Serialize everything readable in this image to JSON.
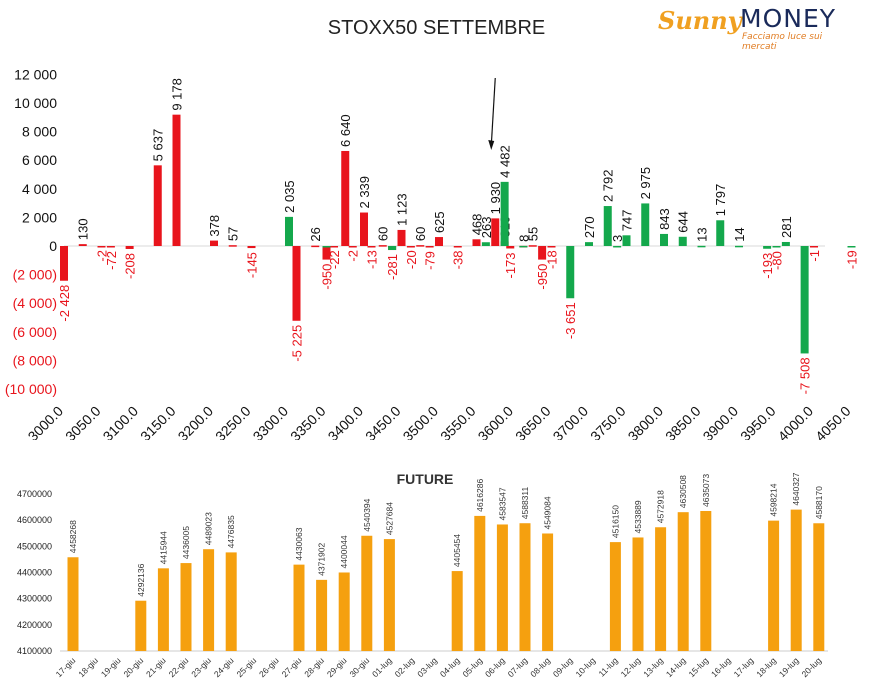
{
  "title": "STOXX50 SETTEMBRE",
  "logo": {
    "word1": "Sunny",
    "word2": "MONEY",
    "tagline": "Facciamo luce sui mercati"
  },
  "colors": {
    "red": "#e8141c",
    "green": "#14a84c",
    "orange": "#f5a00f",
    "label_red": "#e8141c",
    "text": "#111111"
  },
  "chart_data": [
    {
      "type": "bar",
      "title": "STOXX50 SETTEMBRE",
      "ylim": [
        -10000,
        12000
      ],
      "y_ticks": [
        12000,
        10000,
        8000,
        6000,
        4000,
        2000,
        0,
        -2000,
        -4000,
        -6000,
        -8000,
        -10000
      ],
      "y_tick_labels": [
        "12 000",
        "10 000",
        "8 000",
        "6 000",
        "4 000",
        "2 000",
        "0",
        "(2 000)",
        "(4 000)",
        "(6 000)",
        "(8 000)",
        "(10 000)"
      ],
      "x_tick_labels": [
        "3000.0",
        "3050.0",
        "3100.0",
        "3150.0",
        "3200.0",
        "3250.0",
        "3300.0",
        "3350.0",
        "3400.0",
        "3450.0",
        "3500.0",
        "3550.0",
        "3600.0",
        "3650.0",
        "3700.0",
        "3750.0",
        "3800.0",
        "3850.0",
        "3900.0",
        "3950.0",
        "4000.0",
        "4050.0"
      ],
      "series": [
        {
          "color": "red",
          "points": [
            {
              "x": 3000,
              "y": -2428,
              "label": "-2 428"
            },
            {
              "x": 3025,
              "y": 130,
              "label": "130"
            },
            {
              "x": 3050,
              "y": -2,
              "label": "-2"
            },
            {
              "x": 3062.5,
              "y": -72,
              "label": "-72"
            },
            {
              "x": 3087.5,
              "y": -208,
              "label": "-208"
            },
            {
              "x": 3125,
              "y": 5637,
              "label": "5 637"
            },
            {
              "x": 3150,
              "y": 9178,
              "label": "9 178"
            },
            {
              "x": 3200,
              "y": 378,
              "label": "378"
            },
            {
              "x": 3225,
              "y": 57,
              "label": "57"
            },
            {
              "x": 3250,
              "y": -145,
              "label": "-145"
            },
            {
              "x": 3310,
              "y": -5225,
              "label": "-5 225"
            },
            {
              "x": 3335,
              "y": 26,
              "label": "26"
            },
            {
              "x": 3350,
              "y": -950,
              "label": "-950"
            },
            {
              "x": 3360,
              "y": -22,
              "label": "-22"
            },
            {
              "x": 3375,
              "y": 6640,
              "label": "6 640"
            },
            {
              "x": 3385,
              "y": -2,
              "label": "-2"
            },
            {
              "x": 3400,
              "y": 2339,
              "label": "2 339"
            },
            {
              "x": 3410,
              "y": -13,
              "label": "-13"
            },
            {
              "x": 3425,
              "y": 60,
              "label": "60"
            },
            {
              "x": 3437.5,
              "y": -281,
              "label": "-281"
            },
            {
              "x": 3450,
              "y": 1123,
              "label": "1 123"
            },
            {
              "x": 3462.5,
              "y": -20,
              "label": "-20"
            },
            {
              "x": 3475,
              "y": 60,
              "label": "60"
            },
            {
              "x": 3487.5,
              "y": -79,
              "label": "-79"
            },
            {
              "x": 3500,
              "y": 625,
              "label": "625"
            },
            {
              "x": 3525,
              "y": -38,
              "label": "-38"
            },
            {
              "x": 3550,
              "y": 468,
              "label": "468"
            },
            {
              "x": 3575,
              "y": 1930,
              "label": "1 930"
            },
            {
              "x": 3587.5,
              "y": 319,
              "label": "319"
            },
            {
              "x": 3595,
              "y": -173,
              "label": "-173"
            },
            {
              "x": 3612.5,
              "y": 8,
              "label": "8"
            },
            {
              "x": 3625,
              "y": 55,
              "label": "55"
            },
            {
              "x": 3637.5,
              "y": -950,
              "label": "-950"
            },
            {
              "x": 3650,
              "y": -18,
              "label": "-18"
            },
            {
              "x": 4000,
              "y": -1,
              "label": "-1"
            }
          ]
        },
        {
          "color": "green",
          "points": [
            {
              "x": 3300,
              "y": 2035,
              "label": "2 035"
            },
            {
              "x": 3350,
              "y": -22,
              "label": ""
            },
            {
              "x": 3437.5,
              "y": -281,
              "label": ""
            },
            {
              "x": 3562.5,
              "y": 263,
              "label": "263"
            },
            {
              "x": 3587.5,
              "y": 4482,
              "label": "4 482"
            },
            {
              "x": 3612.5,
              "y": 8,
              "label": ""
            },
            {
              "x": 3675,
              "y": -3651,
              "label": "-3 651"
            },
            {
              "x": 3700,
              "y": 270,
              "label": "270"
            },
            {
              "x": 3725,
              "y": 2792,
              "label": "2 792"
            },
            {
              "x": 3737.5,
              "y": 3,
              "label": "3"
            },
            {
              "x": 3750,
              "y": 747,
              "label": "747"
            },
            {
              "x": 3775,
              "y": 2975,
              "label": "2 975"
            },
            {
              "x": 3800,
              "y": 843,
              "label": "843"
            },
            {
              "x": 3825,
              "y": 644,
              "label": "644"
            },
            {
              "x": 3850,
              "y": 13,
              "label": "13"
            },
            {
              "x": 3875,
              "y": 1797,
              "label": "1 797"
            },
            {
              "x": 3900,
              "y": 14,
              "label": "14"
            },
            {
              "x": 3937.5,
              "y": -193,
              "label": "-193"
            },
            {
              "x": 3950,
              "y": -80,
              "label": "-80"
            },
            {
              "x": 3962.5,
              "y": 281,
              "label": "281"
            },
            {
              "x": 3987.5,
              "y": -7508,
              "label": "-7 508"
            },
            {
              "x": 4050,
              "y": -19,
              "label": "-19"
            }
          ]
        }
      ],
      "annotations": [
        {
          "type": "arrow",
          "at_x": 3575,
          "label": ""
        }
      ]
    },
    {
      "type": "bar",
      "title": "FUTURE",
      "ylim": [
        4100000,
        4700000
      ],
      "y_tick_labels": [
        "4700000",
        "4600000",
        "4500000",
        "4400000",
        "4300000",
        "4200000",
        "4100000"
      ],
      "categories": [
        "17-giu",
        "18-giu",
        "19-giu",
        "20-giu",
        "21-giu",
        "22-giu",
        "23-giu",
        "24-giu",
        "25-giu",
        "26-giu",
        "27-giu",
        "28-giu",
        "29-giu",
        "30-giu",
        "01-lug",
        "02-lug",
        "03-lug",
        "04-lug",
        "05-lug",
        "06-lug",
        "07-lug",
        "08-lug",
        "09-lug",
        "10-lug",
        "11-lug",
        "12-lug",
        "13-lug",
        "14-lug",
        "15-lug",
        "16-lug",
        "17-lug",
        "18-lug",
        "19-lug",
        "20-lug"
      ],
      "values": [
        4458268,
        null,
        null,
        4292136,
        4415944,
        4436005,
        4489023,
        4476835,
        null,
        null,
        4430063,
        4371902,
        4400044,
        4540394,
        4527684,
        null,
        null,
        4405454,
        4616286,
        4583547,
        4588311,
        4549084,
        null,
        null,
        4516150,
        4533889,
        4572918,
        4630508,
        4635073,
        null,
        null,
        4598214,
        4640327,
        4588170
      ],
      "value_labels": [
        "4458268",
        "",
        "",
        "4292136",
        "4415944",
        "4436005",
        "4489023",
        "4476835",
        "",
        "",
        "4430063",
        "4371902",
        "4400044",
        "4540394",
        "4527684",
        "",
        "",
        "4405454",
        "4616286",
        "4583547",
        "4588311",
        "4549084",
        "",
        "",
        "4516150",
        "4533889",
        "4572918",
        "4630508",
        "4635073",
        "",
        "",
        "4598214",
        "4640327",
        "4588170"
      ]
    }
  ]
}
